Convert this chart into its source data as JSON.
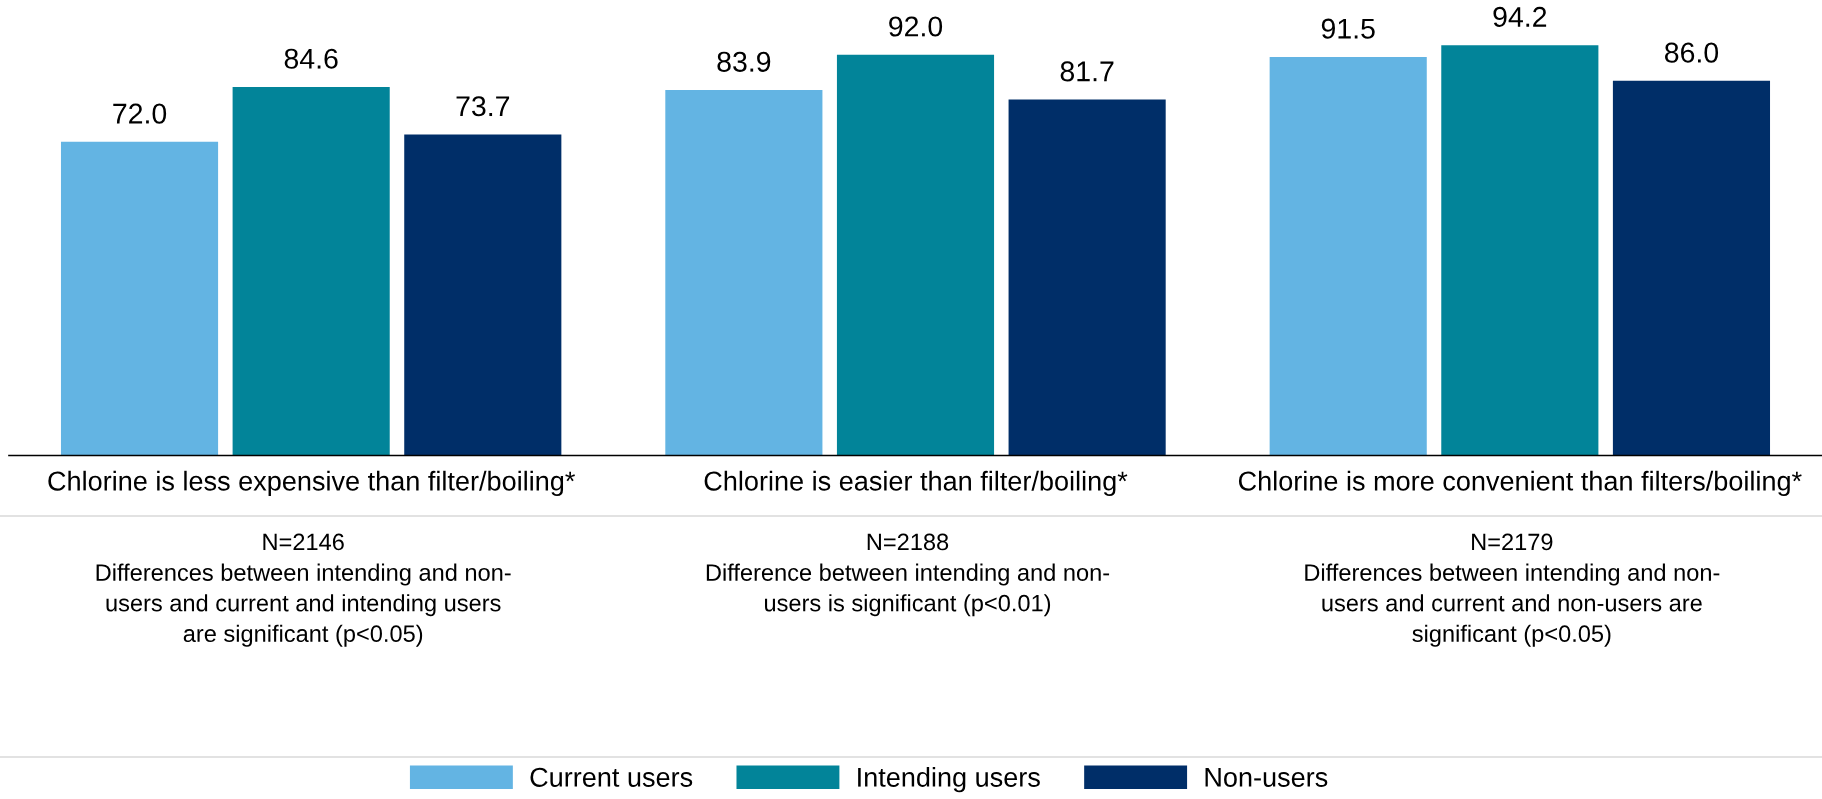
{
  "chart_data": {
    "type": "bar",
    "categories": [
      "Chlorine is less expensive than filter/boiling*",
      "Chlorine is easier than filter/boiling*",
      "Chlorine is more convenient than filters/boiling*"
    ],
    "series": [
      {
        "name": "Current users",
        "color": "#63b4e3",
        "values": [
          72.0,
          83.9,
          91.5
        ],
        "value_labels": [
          "72.0",
          "83.9",
          "91.5"
        ]
      },
      {
        "name": "Intending users",
        "color": "#028499",
        "values": [
          84.6,
          92.0,
          94.2
        ],
        "value_labels": [
          "84.6",
          "92.0",
          "94.2"
        ]
      },
      {
        "name": "Non-users",
        "color": "#002e68",
        "values": [
          73.7,
          81.7,
          86.0
        ],
        "value_labels": [
          "73.7",
          "81.7",
          "86.0"
        ]
      }
    ],
    "legend": "bottom",
    "tick_labels": "x",
    "annotations": [
      "N=2146\nDifferences between intending and non-\nusers and current and intending users\nare significant (p<0.05)",
      "N=2188\nDifference between intending and non-\nusers is significant (p<0.01)",
      "N=2179\nDifferences between intending and non-\nusers and current and non-users are\nsignificant (p<0.05)"
    ]
  }
}
